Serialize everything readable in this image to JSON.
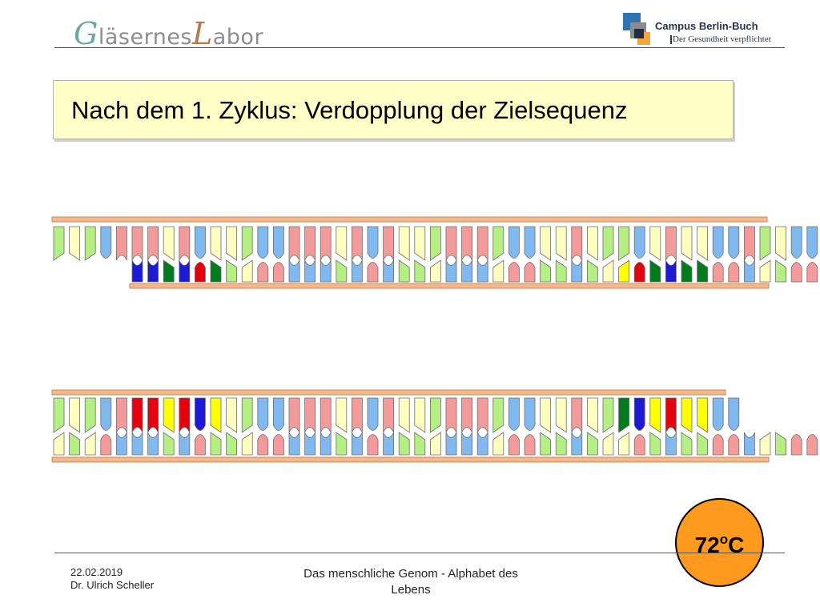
{
  "header": {
    "logo_left": {
      "cap1": "G",
      "part1": "läsernes",
      "cap2": "L",
      "part2": "abor"
    },
    "logo_right": {
      "line1": "Campus Berlin-Buch",
      "line2": "Der Gesundheit verpflichtet"
    }
  },
  "slide": {
    "title": "Nach dem 1. Zyklus: Verdopplung der Zielsequenz"
  },
  "temperature": {
    "value": "72",
    "degree": "o",
    "unit": "C"
  },
  "footer": {
    "date": "22.02.2019",
    "author": "Dr. Ulrich Scheller",
    "center_text": "Das menschliche Genom - Alphabet des Lebens"
  },
  "colors": {
    "G": "#b5ef83",
    "C": "#ffffc0",
    "T": "#80b8f0",
    "A": "#f59a9a",
    "primer_A": "#e4000f",
    "primer_T": "#1d1ad6",
    "primer_G": "#007c1c",
    "primer_C": "#ffff00",
    "backbone": "#f5b88a",
    "backbone_border": "#c8895c",
    "temperature": "#ff9a1f"
  },
  "dna": {
    "upper_sequence": "GCGTAAACATCCGTTAAACATACCGAAAGTTCCACGGTCACCTTAGCTTTCTTGTA",
    "lower_sequence": "GCGTAAACATCCGTTAAACATACCGAAAGTTCCACGGTCACCTTAGCTTTCTTGTA",
    "upper_complement_start": 5,
    "lower_template_end": 43,
    "primer_start_positions": [
      5,
      36
    ]
  }
}
